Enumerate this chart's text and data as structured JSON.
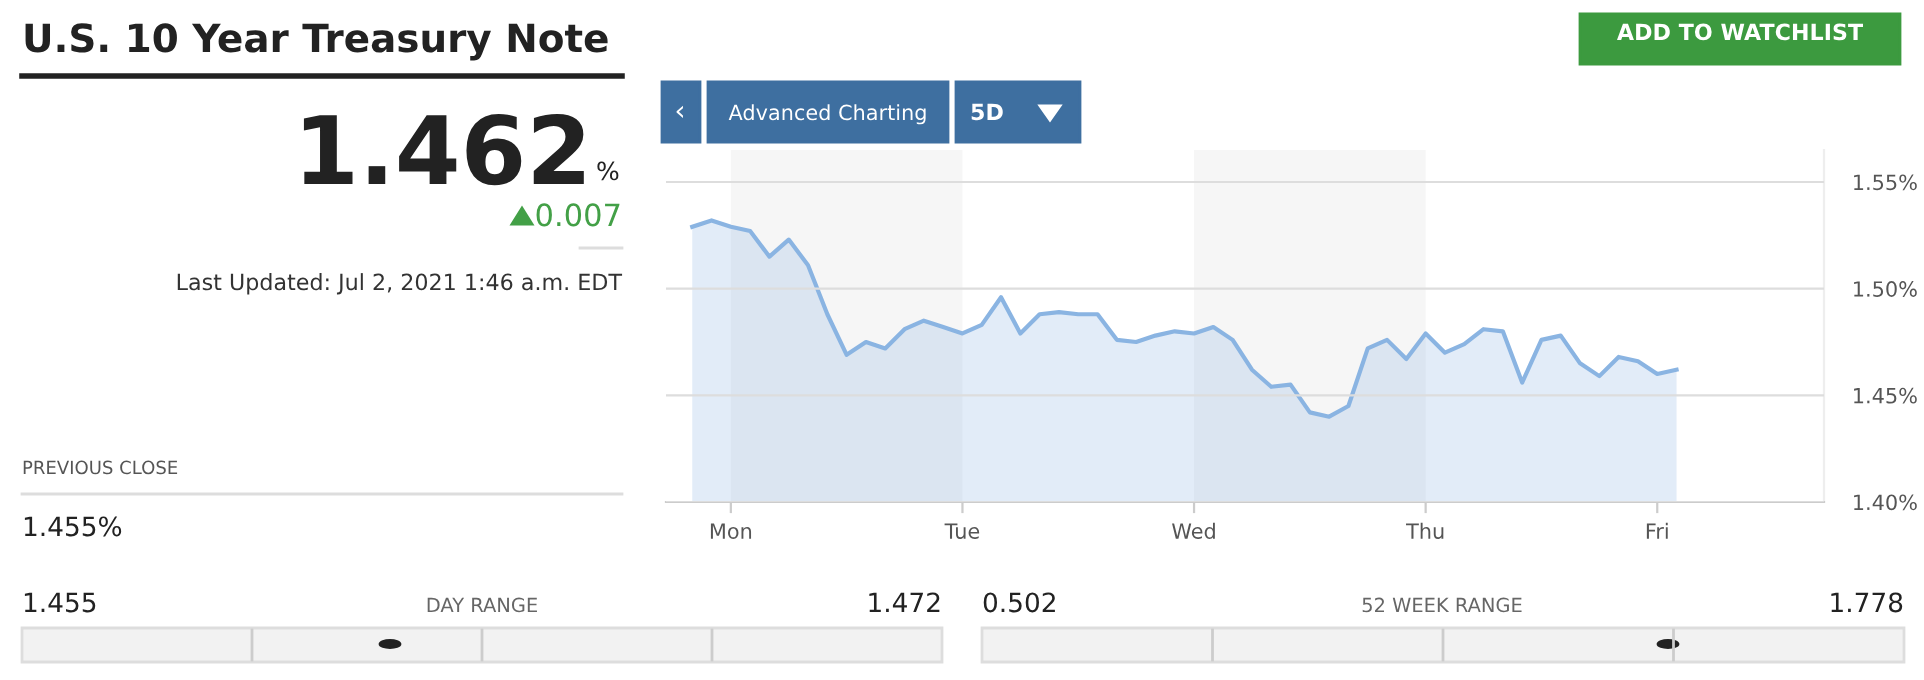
{
  "chart_data": [
    {
      "type": "other",
      "title": "U.S. 10 Year Treasury Note",
      "annotations": [
        "1.462",
        "%",
        "0.007",
        "Last Updated: Jul 2, 2021 1:46 a.m. EDT",
        "PREVIOUS CLOSE",
        "1.455%",
        "1.455",
        "DAY RANGE",
        "1.472",
        "0.502",
        "52 WEEK RANGE",
        "1.778",
        "ADD TO WATCHLIST",
        "Advanced Charting",
        "5D",
        "‹"
      ]
    },
    {
      "type": "area",
      "categories": [
        null,
        null,
        "Mon",
        null,
        null,
        null,
        null,
        null,
        null,
        null,
        null,
        null,
        null,
        null,
        "Tue",
        null,
        null,
        null,
        null,
        null,
        null,
        null,
        null,
        null,
        null,
        null,
        "Wed",
        null,
        null,
        null,
        null,
        null,
        null,
        null,
        null,
        null,
        null,
        null,
        "Thu",
        null,
        null,
        null,
        null,
        null,
        null,
        null,
        null,
        null,
        null,
        null,
        "Fri",
        null
      ],
      "series": [
        {
          "color": "#8ab4e2",
          "values": [
            1.529,
            1.532,
            1.529,
            1.527,
            1.515,
            1.523,
            1.511,
            1.488,
            1.469,
            1.475,
            1.472,
            1.481,
            1.485,
            1.482,
            1.479,
            1.483,
            1.496,
            1.479,
            1.488,
            1.489,
            1.488,
            1.488,
            1.476,
            1.475,
            1.478,
            1.48,
            1.479,
            1.482,
            1.476,
            1.462,
            1.454,
            1.455,
            1.442,
            1.44,
            1.445,
            1.472,
            1.476,
            1.467,
            1.479,
            1.47,
            1.474,
            1.481,
            1.48,
            1.456,
            1.476,
            1.478,
            1.465,
            1.459,
            1.468,
            1.466,
            1.46,
            1.462
          ]
        }
      ],
      "ylim": [
        1.4,
        1.565
      ],
      "yticks": [
        {
          "value": 1.4,
          "label": "1.40%"
        },
        {
          "value": 1.45,
          "label": "1.45%"
        },
        {
          "value": 1.5,
          "label": "1.50%"
        },
        {
          "value": 1.55,
          "label": "1.55%"
        }
      ],
      "grid": "y",
      "bands": [
        {
          "axis": "x",
          "from": "Mon",
          "to": "Tue",
          "color": "#f6f6f6"
        },
        {
          "axis": "x",
          "from": "Wed",
          "to": "Thu",
          "color": "#f6f6f6"
        }
      ]
    }
  ]
}
